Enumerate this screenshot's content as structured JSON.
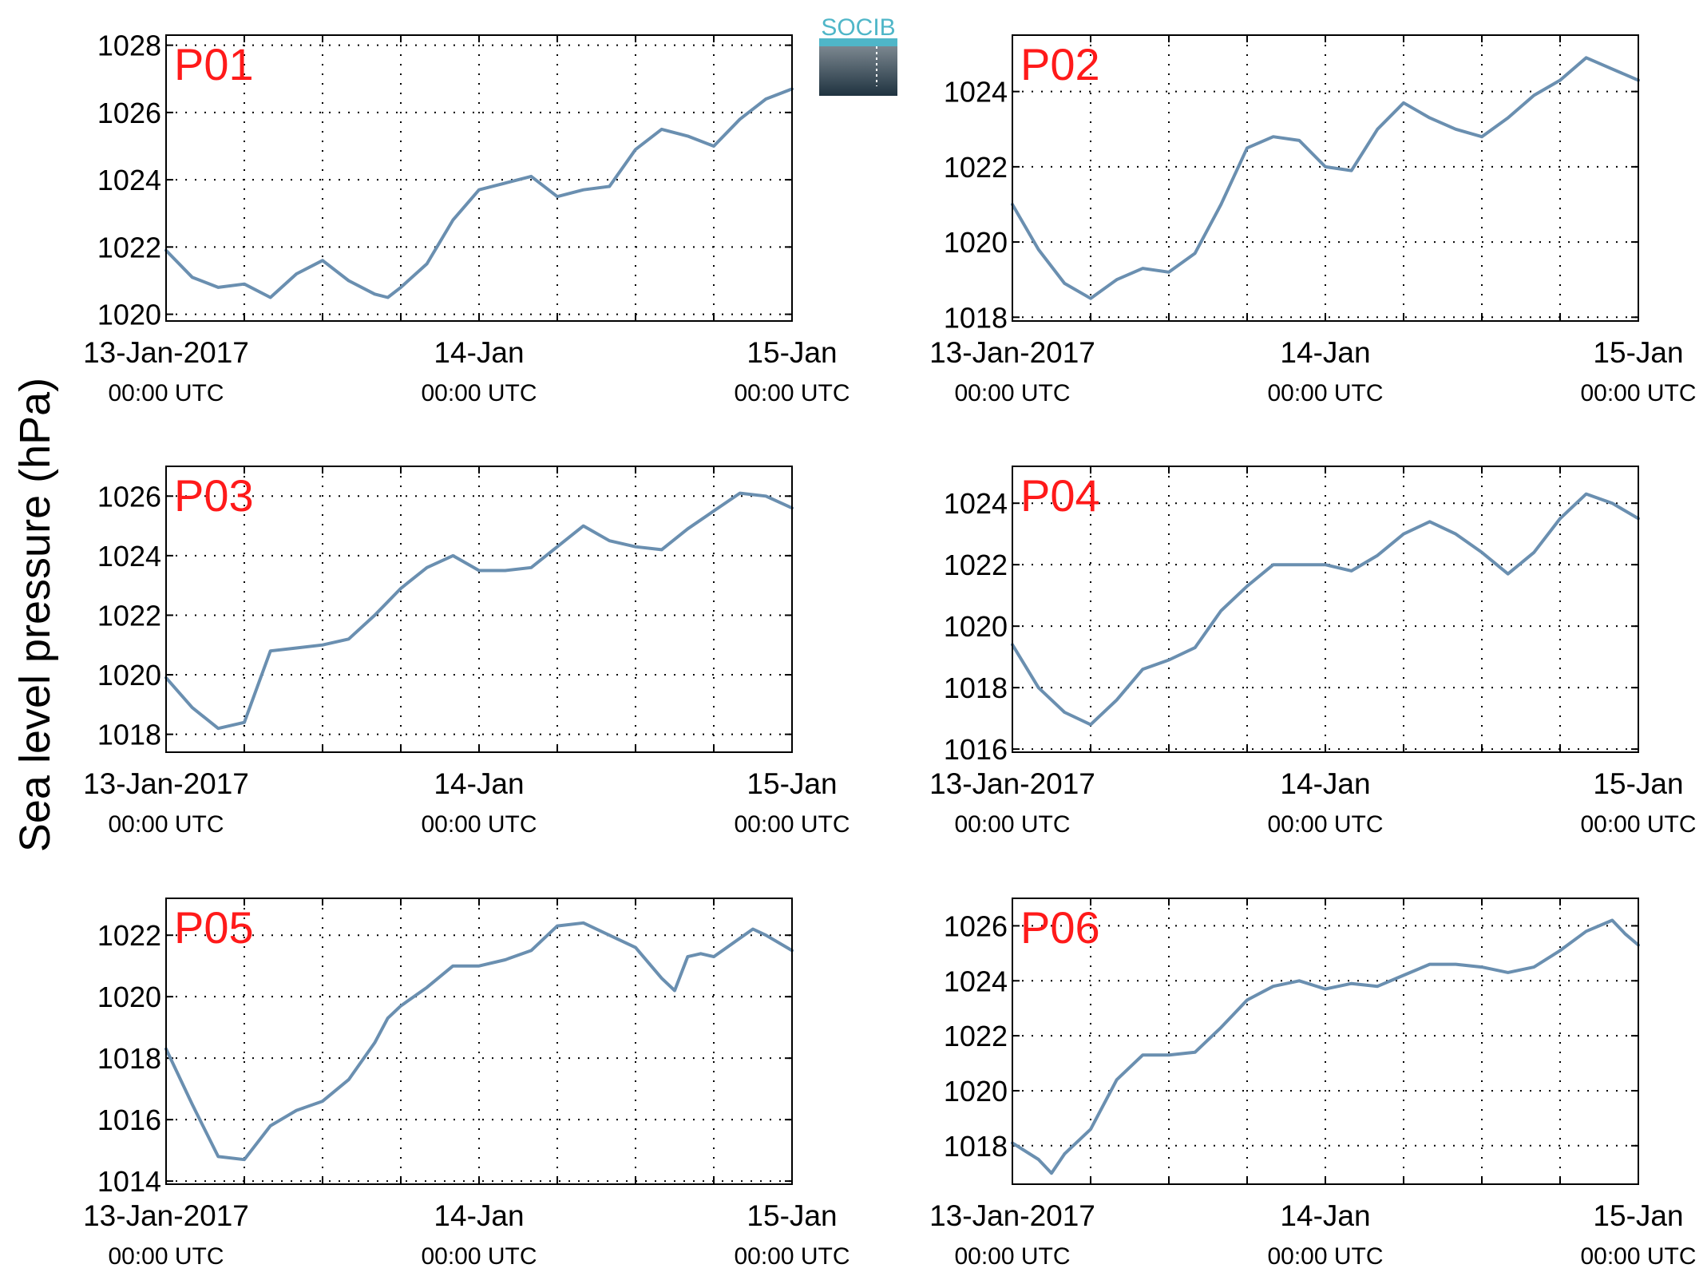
{
  "figure": {
    "ylabel": "Sea level pressure (hPa)",
    "logo_text": "SOCIB",
    "colors": {
      "line": "#6a8fb0",
      "panel_label": "#ff1a1a",
      "axis": "#000000"
    }
  },
  "chart_data": [
    {
      "type": "line",
      "label": "P01",
      "ylim": [
        1019.8,
        1028.3
      ],
      "yticks": [
        1020,
        1022,
        1024,
        1026,
        1028
      ],
      "xticks": [
        {
          "top": "13-Jan-2017",
          "bottom": "00:00 UTC"
        },
        {
          "top": "14-Jan",
          "bottom": "00:00 UTC"
        },
        {
          "top": "15-Jan",
          "bottom": "00:00 UTC"
        }
      ],
      "x_hours": [
        0,
        2,
        4,
        6,
        8,
        10,
        12,
        14,
        16,
        17,
        18,
        20,
        22,
        24,
        26,
        28,
        30,
        32,
        34,
        36,
        38,
        40,
        42,
        44,
        46,
        48
      ],
      "values": [
        1021.9,
        1021.1,
        1020.8,
        1020.9,
        1020.5,
        1021.2,
        1021.6,
        1021.0,
        1020.6,
        1020.5,
        1020.8,
        1021.5,
        1022.8,
        1023.7,
        1023.9,
        1024.1,
        1023.5,
        1023.7,
        1023.8,
        1024.9,
        1025.5,
        1025.3,
        1025.0,
        1025.8,
        1026.4,
        1026.7
      ],
      "grid": true
    },
    {
      "type": "line",
      "label": "P02",
      "ylim": [
        1017.9,
        1025.5
      ],
      "yticks": [
        1018,
        1020,
        1022,
        1024
      ],
      "xticks": [
        {
          "top": "13-Jan-2017",
          "bottom": "00:00 UTC"
        },
        {
          "top": "14-Jan",
          "bottom": "00:00 UTC"
        },
        {
          "top": "15-Jan",
          "bottom": "00:00 UTC"
        }
      ],
      "x_hours": [
        0,
        2,
        4,
        6,
        8,
        10,
        12,
        14,
        16,
        18,
        20,
        22,
        24,
        26,
        28,
        30,
        32,
        34,
        36,
        38,
        40,
        42,
        44,
        46,
        48
      ],
      "values": [
        1021.0,
        1019.8,
        1018.9,
        1018.5,
        1019.0,
        1019.3,
        1019.2,
        1019.7,
        1021.0,
        1022.5,
        1022.8,
        1022.7,
        1022.0,
        1021.9,
        1023.0,
        1023.7,
        1023.3,
        1023.0,
        1022.8,
        1023.3,
        1023.9,
        1024.3,
        1024.9,
        1024.6,
        1024.3
      ],
      "grid": true
    },
    {
      "type": "line",
      "label": "P03",
      "ylim": [
        1017.4,
        1027.0
      ],
      "yticks": [
        1018,
        1020,
        1022,
        1024,
        1026
      ],
      "xticks": [
        {
          "top": "13-Jan-2017",
          "bottom": "00:00 UTC"
        },
        {
          "top": "14-Jan",
          "bottom": "00:00 UTC"
        },
        {
          "top": "15-Jan",
          "bottom": "00:00 UTC"
        }
      ],
      "x_hours": [
        0,
        2,
        4,
        6,
        8,
        10,
        12,
        14,
        16,
        18,
        20,
        22,
        24,
        26,
        28,
        30,
        32,
        34,
        36,
        38,
        40,
        42,
        44,
        46,
        48
      ],
      "values": [
        1019.9,
        1018.9,
        1018.2,
        1018.4,
        1020.8,
        1020.9,
        1021.0,
        1021.2,
        1022.0,
        1022.9,
        1023.6,
        1024.0,
        1023.5,
        1023.5,
        1023.6,
        1024.3,
        1025.0,
        1024.5,
        1024.3,
        1024.2,
        1024.9,
        1025.5,
        1026.1,
        1026.0,
        1025.6
      ],
      "grid": true
    },
    {
      "type": "line",
      "label": "P04",
      "ylim": [
        1015.9,
        1025.2
      ],
      "yticks": [
        1016,
        1018,
        1020,
        1022,
        1024
      ],
      "xticks": [
        {
          "top": "13-Jan-2017",
          "bottom": "00:00 UTC"
        },
        {
          "top": "14-Jan",
          "bottom": "00:00 UTC"
        },
        {
          "top": "15-Jan",
          "bottom": "00:00 UTC"
        }
      ],
      "x_hours": [
        0,
        2,
        4,
        6,
        8,
        10,
        12,
        14,
        16,
        18,
        20,
        22,
        24,
        26,
        28,
        30,
        32,
        34,
        36,
        38,
        40,
        42,
        44,
        46,
        48
      ],
      "values": [
        1019.4,
        1018.0,
        1017.2,
        1016.8,
        1017.6,
        1018.6,
        1018.9,
        1019.3,
        1020.5,
        1021.3,
        1022.0,
        1022.0,
        1022.0,
        1021.8,
        1022.3,
        1023.0,
        1023.4,
        1023.0,
        1022.4,
        1021.7,
        1022.4,
        1023.5,
        1024.3,
        1024.0,
        1023.5
      ],
      "grid": true
    },
    {
      "type": "line",
      "label": "P05",
      "ylim": [
        1013.9,
        1023.2
      ],
      "yticks": [
        1014,
        1016,
        1018,
        1020,
        1022
      ],
      "xticks": [
        {
          "top": "13-Jan-2017",
          "bottom": "00:00 UTC"
        },
        {
          "top": "14-Jan",
          "bottom": "00:00 UTC"
        },
        {
          "top": "15-Jan",
          "bottom": "00:00 UTC"
        }
      ],
      "x_hours": [
        0,
        2,
        4,
        6,
        8,
        10,
        12,
        14,
        16,
        17,
        18,
        20,
        22,
        24,
        26,
        28,
        30,
        32,
        34,
        36,
        38,
        39,
        40,
        41,
        42,
        44,
        45,
        46,
        48
      ],
      "values": [
        1018.3,
        1016.5,
        1014.8,
        1014.7,
        1015.8,
        1016.3,
        1016.6,
        1017.3,
        1018.5,
        1019.3,
        1019.7,
        1020.3,
        1021.0,
        1021.0,
        1021.2,
        1021.5,
        1022.3,
        1022.4,
        1022.0,
        1021.6,
        1020.6,
        1020.2,
        1021.3,
        1021.4,
        1021.3,
        1021.9,
        1022.2,
        1022.0,
        1021.5
      ],
      "grid": true
    },
    {
      "type": "line",
      "label": "P06",
      "ylim": [
        1016.6,
        1027.0
      ],
      "yticks": [
        1018,
        1020,
        1022,
        1024,
        1026
      ],
      "xticks": [
        {
          "top": "13-Jan-2017",
          "bottom": "00:00 UTC"
        },
        {
          "top": "14-Jan",
          "bottom": "00:00 UTC"
        },
        {
          "top": "15-Jan",
          "bottom": "00:00 UTC"
        }
      ],
      "x_hours": [
        0,
        2,
        3,
        4,
        6,
        8,
        10,
        12,
        14,
        16,
        18,
        20,
        22,
        24,
        26,
        28,
        30,
        32,
        34,
        36,
        38,
        40,
        42,
        44,
        46,
        47,
        48
      ],
      "values": [
        1018.1,
        1017.5,
        1017.0,
        1017.7,
        1018.6,
        1020.4,
        1021.3,
        1021.3,
        1021.4,
        1022.3,
        1023.3,
        1023.8,
        1024.0,
        1023.7,
        1023.9,
        1023.8,
        1024.2,
        1024.6,
        1024.6,
        1024.5,
        1024.3,
        1024.5,
        1025.1,
        1025.8,
        1026.2,
        1025.7,
        1025.3
      ],
      "grid": true
    }
  ]
}
